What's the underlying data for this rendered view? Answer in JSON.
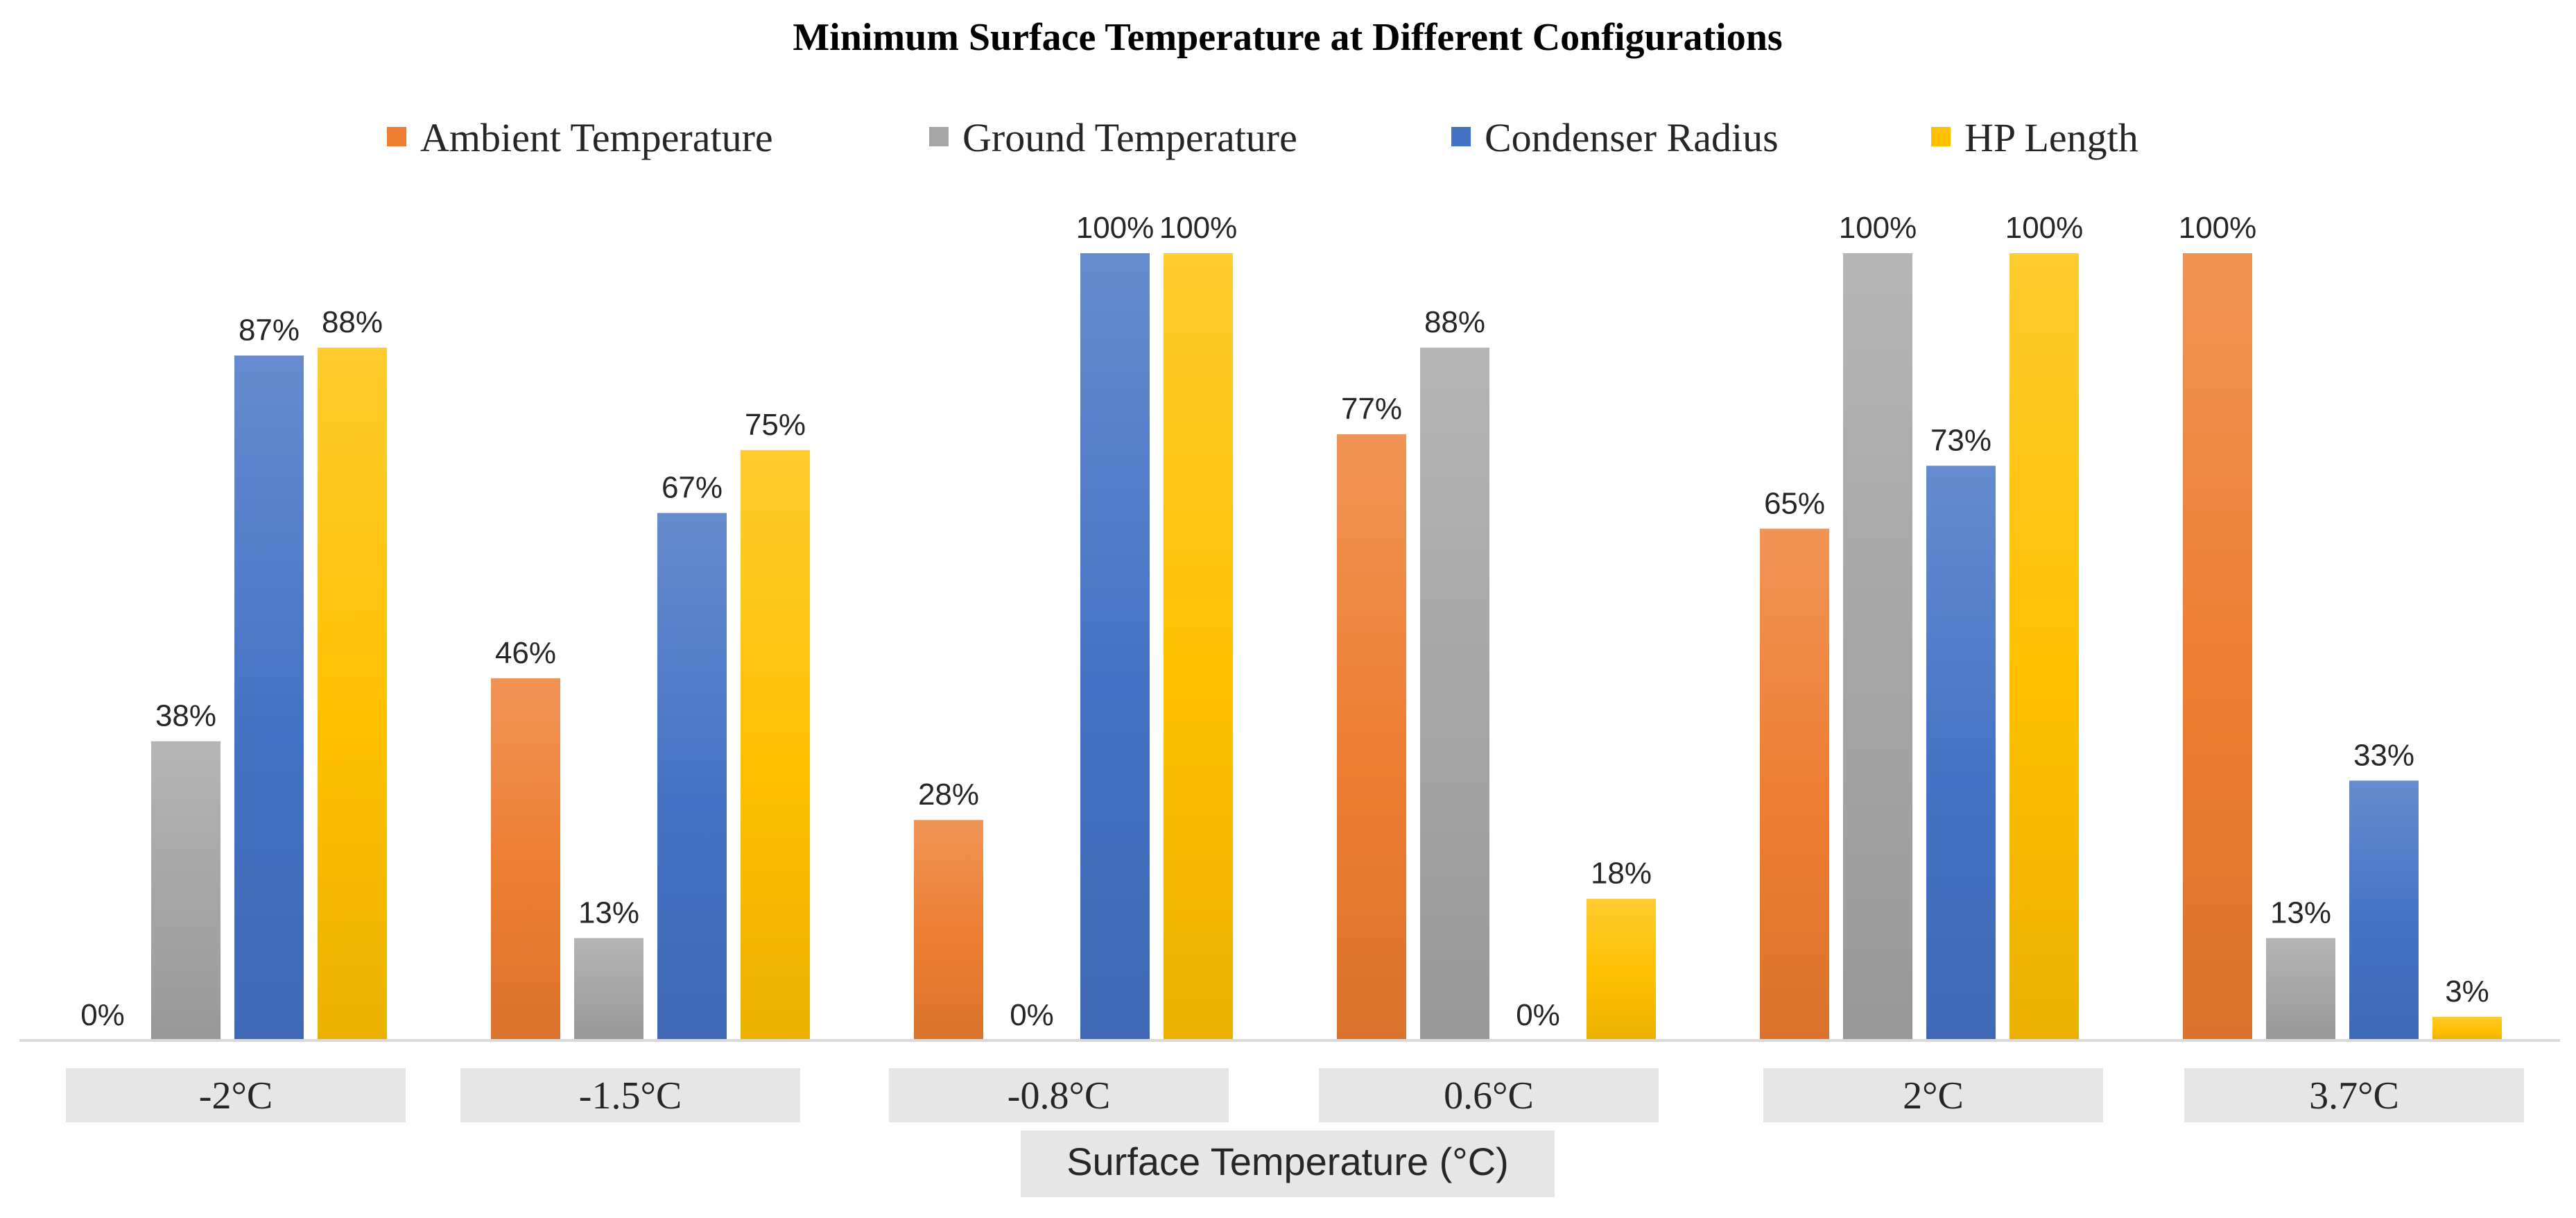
{
  "chart_data": {
    "type": "bar",
    "title": "Minimum Surface Temperature at Different Configurations",
    "xlabel": "Surface Temperature (°C)",
    "ylabel": "",
    "ylim": [
      0,
      100
    ],
    "legend_position": "top",
    "categories": [
      "-2°C",
      "-1.5°C",
      "-0.8°C",
      "0.6°C",
      "2°C",
      "3.7°C"
    ],
    "series": [
      {
        "name": "Ambient Temperature",
        "color": "#ED7D31",
        "values": [
          0,
          46,
          28,
          77,
          65,
          100
        ],
        "labels": [
          "0%",
          "46%",
          "28%",
          "77%",
          "65%",
          "100%"
        ]
      },
      {
        "name": "Ground Temperature",
        "color": "#A5A5A5",
        "values": [
          38,
          13,
          0,
          88,
          100,
          13
        ],
        "labels": [
          "38%",
          "13%",
          "0%",
          "88%",
          "100%",
          "13%"
        ]
      },
      {
        "name": "Condenser Radius",
        "color": "#4472C4",
        "values": [
          87,
          67,
          100,
          0,
          73,
          33
        ],
        "labels": [
          "87%",
          "67%",
          "100%",
          "0%",
          "73%",
          "33%"
        ]
      },
      {
        "name": "HP Length",
        "color": "#FFC000",
        "values": [
          88,
          75,
          100,
          18,
          100,
          3
        ],
        "labels": [
          "88%",
          "75%",
          "100%",
          "18%",
          "100%",
          "3%"
        ]
      }
    ]
  }
}
